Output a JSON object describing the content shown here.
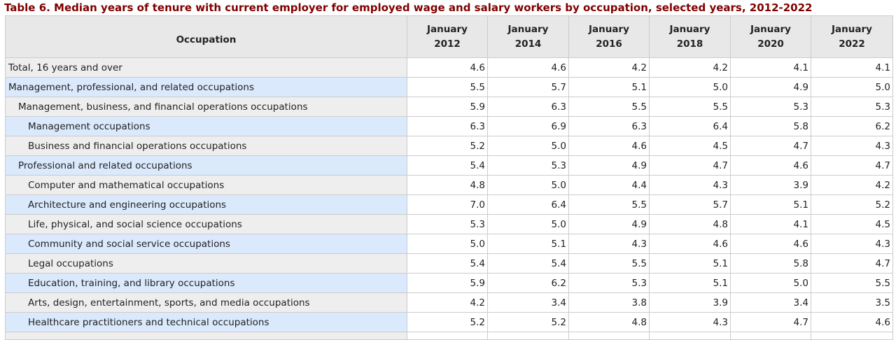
{
  "caption": "Table 6. Median years of tenure with current employer for employed wage and salary workers by occupation, selected years, 2012-2022",
  "columns": {
    "occupation": "Occupation",
    "years": [
      {
        "line1": "January",
        "line2": "2012"
      },
      {
        "line1": "January",
        "line2": "2014"
      },
      {
        "line1": "January",
        "line2": "2016"
      },
      {
        "line1": "January",
        "line2": "2018"
      },
      {
        "line1": "January",
        "line2": "2020"
      },
      {
        "line1": "January",
        "line2": "2022"
      }
    ]
  },
  "rows": [
    {
      "label": "Total, 16 years and over",
      "level": 0,
      "values": [
        "4.6",
        "4.6",
        "4.2",
        "4.2",
        "4.1",
        "4.1"
      ]
    },
    {
      "label": "Management, professional, and related occupations",
      "level": 0,
      "values": [
        "5.5",
        "5.7",
        "5.1",
        "5.0",
        "4.9",
        "5.0"
      ]
    },
    {
      "label": "Management, business, and financial operations occupations",
      "level": 1,
      "values": [
        "5.9",
        "6.3",
        "5.5",
        "5.5",
        "5.3",
        "5.3"
      ]
    },
    {
      "label": "Management occupations",
      "level": 2,
      "values": [
        "6.3",
        "6.9",
        "6.3",
        "6.4",
        "5.8",
        "6.2"
      ]
    },
    {
      "label": "Business and financial operations occupations",
      "level": 2,
      "values": [
        "5.2",
        "5.0",
        "4.6",
        "4.5",
        "4.7",
        "4.3"
      ]
    },
    {
      "label": "Professional and related occupations",
      "level": 1,
      "values": [
        "5.4",
        "5.3",
        "4.9",
        "4.7",
        "4.6",
        "4.7"
      ]
    },
    {
      "label": "Computer and mathematical occupations",
      "level": 2,
      "values": [
        "4.8",
        "5.0",
        "4.4",
        "4.3",
        "3.9",
        "4.2"
      ]
    },
    {
      "label": "Architecture and engineering occupations",
      "level": 2,
      "values": [
        "7.0",
        "6.4",
        "5.5",
        "5.7",
        "5.1",
        "5.2"
      ]
    },
    {
      "label": "Life, physical, and social science occupations",
      "level": 2,
      "values": [
        "5.3",
        "5.0",
        "4.9",
        "4.8",
        "4.1",
        "4.5"
      ]
    },
    {
      "label": "Community and social service occupations",
      "level": 2,
      "values": [
        "5.0",
        "5.1",
        "4.3",
        "4.6",
        "4.6",
        "4.3"
      ]
    },
    {
      "label": "Legal occupations",
      "level": 2,
      "values": [
        "5.4",
        "5.4",
        "5.5",
        "5.1",
        "5.8",
        "4.7"
      ]
    },
    {
      "label": "Education, training, and library occupations",
      "level": 2,
      "values": [
        "5.9",
        "6.2",
        "5.3",
        "5.1",
        "5.0",
        "5.5"
      ]
    },
    {
      "label": "Arts, design, entertainment, sports, and media occupations",
      "level": 2,
      "values": [
        "4.2",
        "3.4",
        "3.8",
        "3.9",
        "3.4",
        "3.5"
      ]
    },
    {
      "label": "Healthcare practitioners and technical occupations",
      "level": 2,
      "values": [
        "5.2",
        "5.2",
        "4.8",
        "4.3",
        "4.7",
        "4.6"
      ]
    }
  ]
}
